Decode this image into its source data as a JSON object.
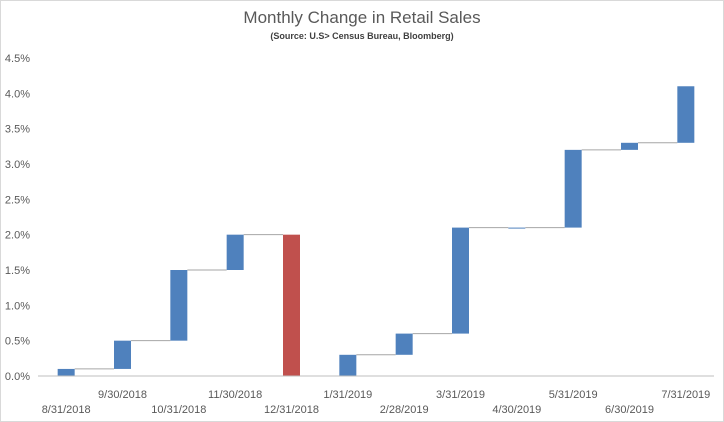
{
  "chart_data": {
    "type": "bar",
    "subtype": "waterfall",
    "title": "Monthly Change in Retail Sales",
    "subtitle": "(Source:  U.S> Census Bureau, Bloomberg)",
    "xlabel": "",
    "ylabel": "",
    "ylim": [
      0,
      4.5
    ],
    "y_ticks": [
      "0.0%",
      "0.5%",
      "1.0%",
      "1.5%",
      "2.0%",
      "2.5%",
      "3.0%",
      "3.5%",
      "4.0%",
      "4.5%"
    ],
    "grid": false,
    "legend": "none",
    "categories": [
      "8/31/2018",
      "9/30/2018",
      "10/31/2018",
      "11/30/2018",
      "12/31/2018",
      "1/31/2019",
      "2/28/2019",
      "3/31/2019",
      "4/30/2019",
      "5/31/2019",
      "6/30/2019",
      "7/31/2019"
    ],
    "bars": [
      {
        "start": 0.0,
        "end": 0.1
      },
      {
        "start": 0.1,
        "end": 0.5
      },
      {
        "start": 0.5,
        "end": 1.5
      },
      {
        "start": 1.5,
        "end": 2.0
      },
      {
        "start": 2.0,
        "end": 0.0
      },
      {
        "start": 0.0,
        "end": 0.3
      },
      {
        "start": 0.3,
        "end": 0.6
      },
      {
        "start": 0.6,
        "end": 2.1
      },
      {
        "start": 2.1,
        "end": 2.1
      },
      {
        "start": 2.1,
        "end": 3.2
      },
      {
        "start": 3.2,
        "end": 3.3
      },
      {
        "start": 3.3,
        "end": 4.1
      }
    ],
    "colors": {
      "increase": "#4f81bd",
      "decrease": "#c0504d",
      "connector": "#a6a6a6",
      "axis": "#bfbfbf"
    }
  }
}
